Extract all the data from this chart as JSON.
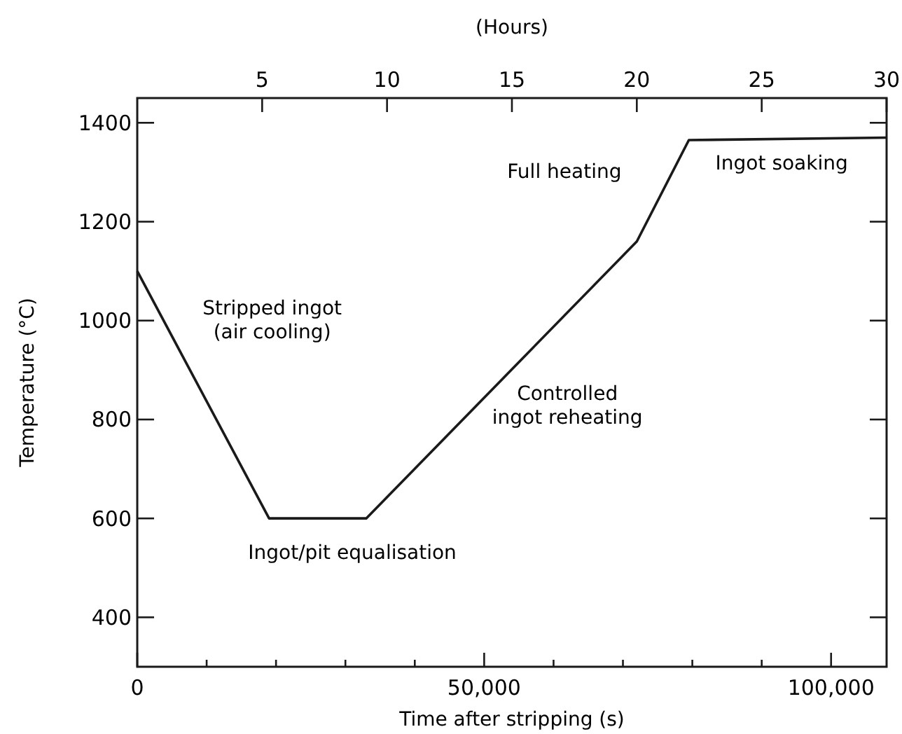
{
  "chart_data": {
    "type": "line",
    "xlabel": "Time after stripping (s)",
    "ylabel": "Temperature (°C)",
    "x2label": "(Hours)",
    "x": [
      0,
      19000,
      33000,
      72000,
      79500,
      108000
    ],
    "series": [
      {
        "color": "#1a1a1a",
        "values": [
          1100,
          600,
          600,
          1160,
          1365,
          1370
        ]
      }
    ],
    "xlim": [
      0,
      108000
    ],
    "xticks": [
      0,
      {
        "value": 10000,
        "label": null
      },
      {
        "value": 20000,
        "label": null
      },
      {
        "value": 30000,
        "label": null
      },
      {
        "value": 40000,
        "label": null
      },
      {
        "value": 50000,
        "label": "50,000"
      },
      {
        "value": 60000,
        "label": null
      },
      {
        "value": 70000,
        "label": null
      },
      {
        "value": 80000,
        "label": null
      },
      {
        "value": 90000,
        "label": null
      },
      {
        "value": 100000,
        "label": "100,000"
      }
    ],
    "x2lim": [
      0,
      30
    ],
    "x2ticks": [
      5,
      10,
      15,
      20,
      25,
      30
    ],
    "ylim": [
      300,
      1450
    ],
    "yticks": [
      400,
      600,
      800,
      1000,
      1200,
      1400
    ],
    "grid": false,
    "marker": "none",
    "line_style": "solid",
    "annotations": [
      "Stripped ingot\n(air cooling)",
      "Ingot/pit equalisation",
      "Controlled\ningot reheating",
      "Full heating",
      "Ingot soaking"
    ]
  }
}
